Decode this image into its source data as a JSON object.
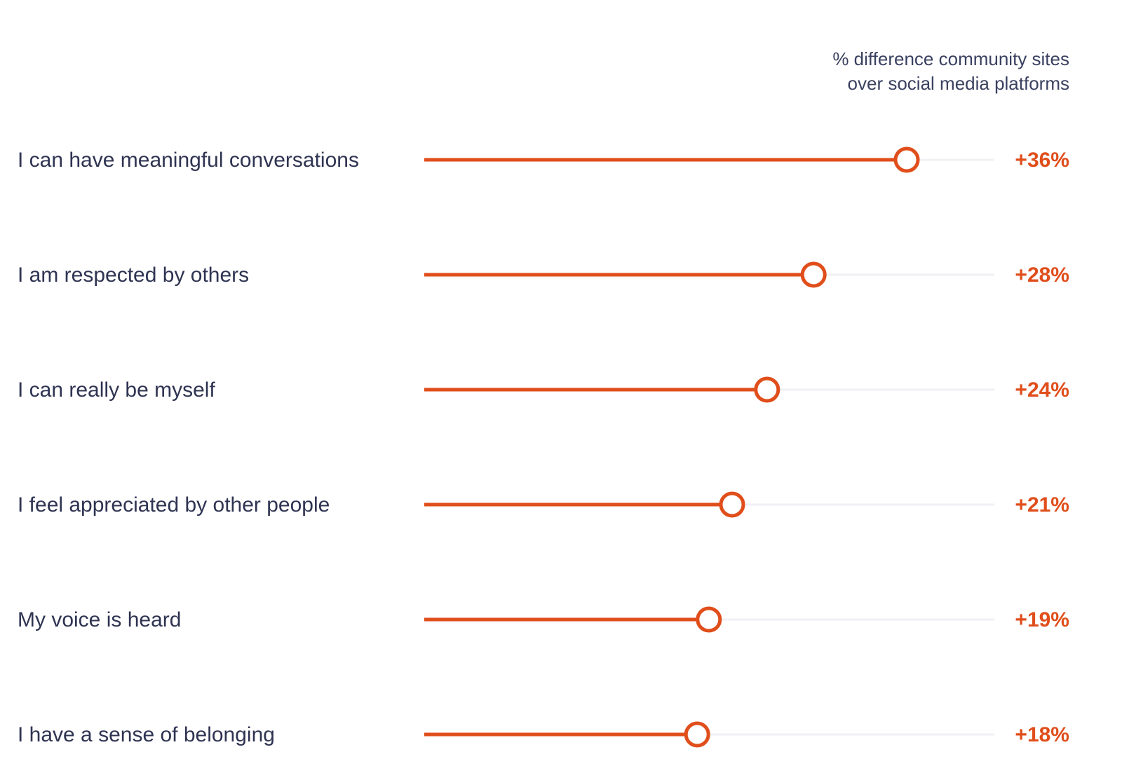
{
  "chart_data": {
    "type": "lollipop",
    "header": [
      "% difference community sites",
      "over social media platforms"
    ],
    "categories": [
      "I can have meaningful conversations",
      "I am respected by others",
      "I can really be myself",
      "I feel appreciated by other people",
      "My voice is heard",
      "I have a sense of belonging"
    ],
    "values": [
      36,
      28,
      24,
      21,
      19,
      18
    ],
    "value_labels": [
      "+36%",
      "+28%",
      "+24%",
      "+21%",
      "+19%",
      "+18%"
    ],
    "unit": "%",
    "grid": false,
    "colors": {
      "accent": "#e04e1b",
      "track": "#f0f1f5",
      "text": "#2f3452"
    }
  }
}
